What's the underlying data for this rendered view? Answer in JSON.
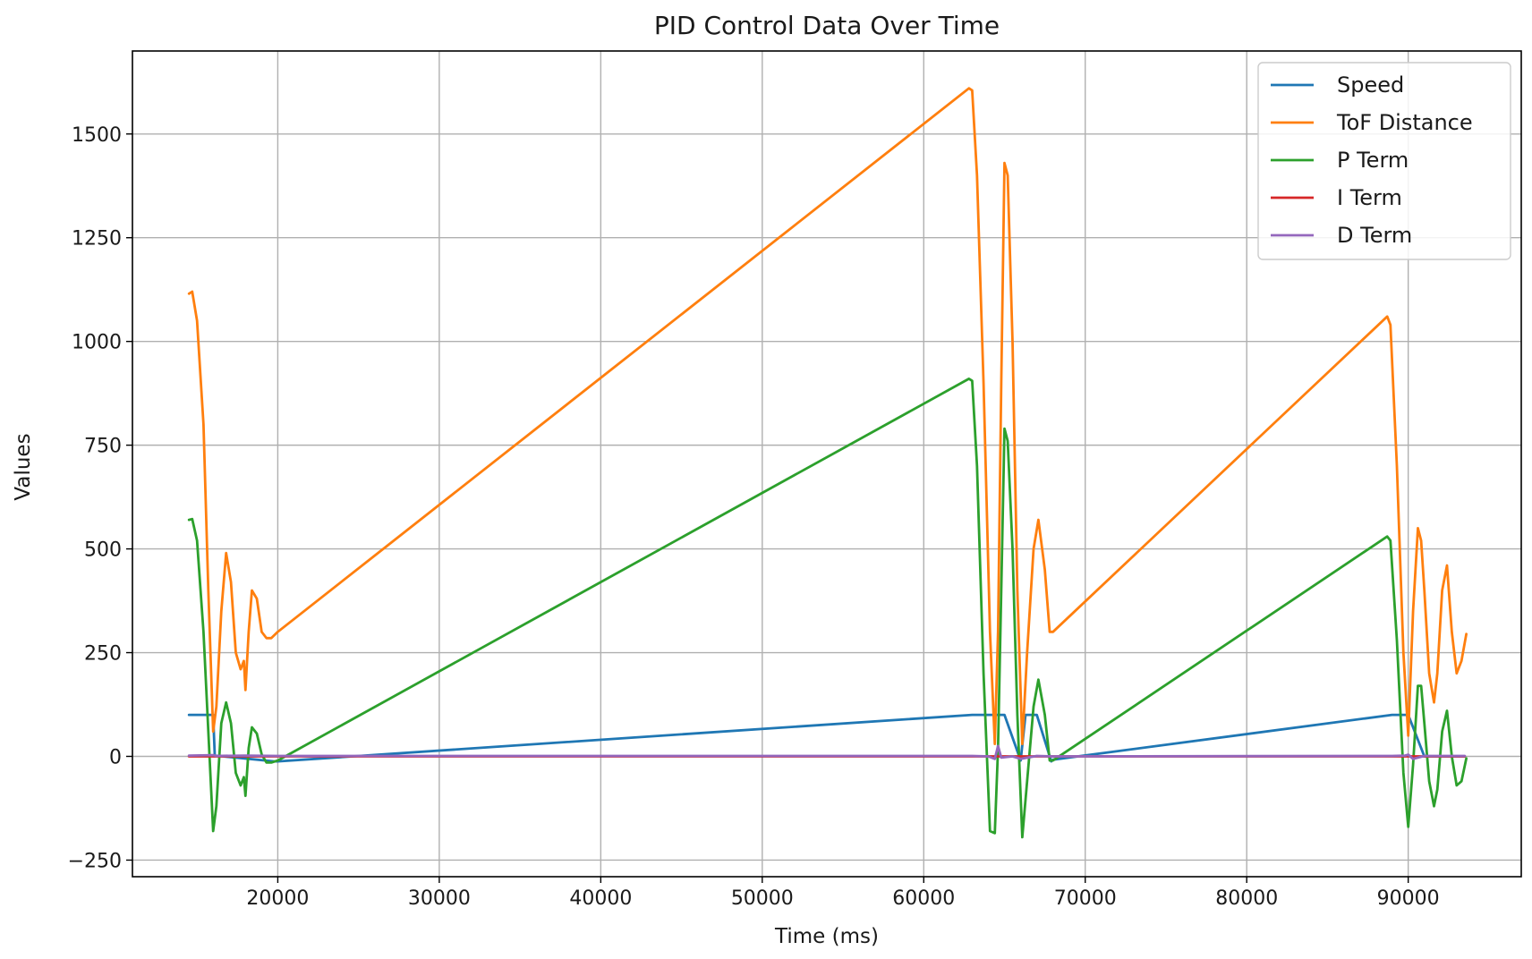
{
  "chart_data": {
    "type": "line",
    "title": "PID Control Data Over Time",
    "xlabel": "Time (ms)",
    "ylabel": "Values",
    "xlim": [
      11000,
      97000
    ],
    "ylim": [
      -290,
      1700
    ],
    "xticks": [
      20000,
      30000,
      40000,
      50000,
      60000,
      70000,
      80000,
      90000
    ],
    "yticks": [
      -250,
      0,
      250,
      500,
      750,
      1000,
      1250,
      1500
    ],
    "xtick_labels": [
      "20000",
      "30000",
      "40000",
      "50000",
      "60000",
      "70000",
      "80000",
      "90000"
    ],
    "ytick_labels": [
      "−250",
      "0",
      "250",
      "500",
      "750",
      "1000",
      "1250",
      "1500"
    ],
    "grid": true,
    "legend_position": "top-right",
    "series": [
      {
        "name": "Speed",
        "color": "#1f77b4",
        "x": [
          14500,
          16000,
          16100,
          19800,
          20000,
          63000,
          65000,
          66000,
          66300,
          67000,
          67900,
          68000,
          89000,
          90000,
          91000,
          93500
        ],
        "y": [
          100,
          100,
          2,
          -12,
          -12,
          100,
          100,
          -10,
          100,
          100,
          -12,
          -8,
          100,
          100,
          0,
          0
        ]
      },
      {
        "name": "ToF Distance",
        "color": "#ff7f0e",
        "x": [
          14500,
          14700,
          15000,
          15400,
          15700,
          16000,
          16200,
          16500,
          16800,
          17100,
          17400,
          17700,
          17900,
          18000,
          18200,
          18400,
          18700,
          19000,
          19300,
          19600,
          20000,
          62800,
          63000,
          63300,
          63700,
          64100,
          64400,
          64600,
          64800,
          65000,
          65200,
          65500,
          65800,
          66100,
          66400,
          66800,
          67100,
          67500,
          67800,
          68000,
          88700,
          88900,
          89300,
          89700,
          90000,
          90300,
          90600,
          90800,
          91000,
          91300,
          91600,
          91800,
          92100,
          92400,
          92700,
          93000,
          93300,
          93600
        ],
        "y": [
          1115,
          1120,
          1050,
          800,
          400,
          60,
          120,
          350,
          490,
          420,
          250,
          210,
          230,
          160,
          300,
          400,
          380,
          300,
          285,
          285,
          300,
          1610,
          1605,
          1400,
          900,
          300,
          30,
          300,
          900,
          1430,
          1400,
          1000,
          400,
          30,
          250,
          500,
          570,
          450,
          300,
          300,
          1060,
          1040,
          700,
          250,
          50,
          350,
          550,
          520,
          400,
          200,
          130,
          200,
          400,
          460,
          300,
          200,
          230,
          295
        ]
      },
      {
        "name": "P Term",
        "color": "#2ca02c",
        "x": [
          14500,
          14700,
          15000,
          15400,
          15700,
          16000,
          16200,
          16500,
          16800,
          17100,
          17400,
          17700,
          17900,
          18000,
          18200,
          18400,
          18700,
          19000,
          19300,
          19600,
          20000,
          62800,
          63000,
          63300,
          63700,
          64100,
          64400,
          64600,
          64800,
          65000,
          65200,
          65500,
          65800,
          66100,
          66400,
          66800,
          67100,
          67500,
          67800,
          68000,
          88700,
          88900,
          89300,
          89700,
          90000,
          90300,
          90600,
          90800,
          91000,
          91300,
          91600,
          91800,
          92100,
          92400,
          92700,
          93000,
          93300,
          93600
        ],
        "y": [
          570,
          572,
          520,
          300,
          60,
          -180,
          -120,
          80,
          130,
          80,
          -40,
          -70,
          -50,
          -95,
          20,
          70,
          55,
          5,
          -15,
          -15,
          -10,
          910,
          905,
          700,
          200,
          -180,
          -185,
          20,
          400,
          790,
          760,
          500,
          100,
          -195,
          -60,
          120,
          185,
          100,
          -10,
          -10,
          530,
          520,
          280,
          -40,
          -170,
          -20,
          170,
          170,
          80,
          -60,
          -120,
          -80,
          60,
          110,
          0,
          -70,
          -60,
          -5
        ]
      },
      {
        "name": "I Term",
        "color": "#d62728",
        "x": [
          14500,
          20000,
          40000,
          63000,
          64500,
          65000,
          68000,
          89000,
          90000,
          93500
        ],
        "y": [
          0,
          0,
          0,
          0,
          0,
          0,
          0,
          0,
          0,
          0
        ]
      },
      {
        "name": "D Term",
        "color": "#9467bd",
        "x": [
          14500,
          16000,
          16200,
          18000,
          20000,
          63000,
          64000,
          64400,
          64600,
          64800,
          65500,
          66000,
          67000,
          68000,
          89000,
          89800,
          90000,
          90300,
          91000,
          93500
        ],
        "y": [
          2,
          3,
          1,
          2,
          1,
          1,
          0,
          -6,
          25,
          -3,
          0,
          -6,
          1,
          0,
          1,
          2,
          4,
          -6,
          1,
          1
        ]
      }
    ]
  }
}
